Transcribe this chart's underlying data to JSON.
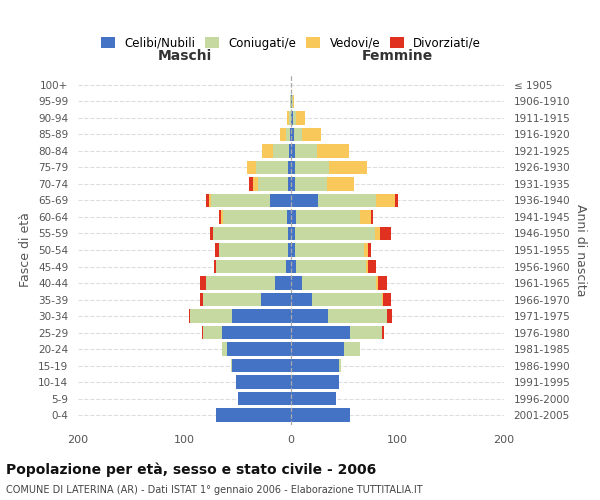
{
  "age_groups": [
    "0-4",
    "5-9",
    "10-14",
    "15-19",
    "20-24",
    "25-29",
    "30-34",
    "35-39",
    "40-44",
    "45-49",
    "50-54",
    "55-59",
    "60-64",
    "65-69",
    "70-74",
    "75-79",
    "80-84",
    "85-89",
    "90-94",
    "95-99",
    "100+"
  ],
  "birth_years": [
    "2001-2005",
    "1996-2000",
    "1991-1995",
    "1986-1990",
    "1981-1985",
    "1976-1980",
    "1971-1975",
    "1966-1970",
    "1961-1965",
    "1956-1960",
    "1951-1955",
    "1946-1950",
    "1941-1945",
    "1936-1940",
    "1931-1935",
    "1926-1930",
    "1921-1925",
    "1916-1920",
    "1911-1915",
    "1906-1910",
    "≤ 1905"
  ],
  "maschi": {
    "celibi": [
      70,
      50,
      52,
      55,
      60,
      65,
      55,
      28,
      15,
      5,
      3,
      3,
      4,
      20,
      3,
      3,
      2,
      1,
      0,
      0,
      0
    ],
    "coniugati": [
      0,
      0,
      0,
      1,
      5,
      18,
      40,
      55,
      65,
      65,
      65,
      70,
      60,
      55,
      28,
      30,
      15,
      4,
      2,
      1,
      0
    ],
    "vedovi": [
      0,
      0,
      0,
      0,
      0,
      0,
      0,
      0,
      0,
      0,
      0,
      0,
      2,
      2,
      5,
      8,
      10,
      5,
      2,
      0,
      0
    ],
    "divorziati": [
      0,
      0,
      0,
      0,
      0,
      1,
      1,
      2,
      5,
      2,
      3,
      3,
      2,
      3,
      3,
      0,
      0,
      0,
      0,
      0,
      0
    ]
  },
  "femmine": {
    "nubili": [
      55,
      42,
      45,
      45,
      50,
      55,
      35,
      20,
      10,
      5,
      4,
      4,
      5,
      25,
      4,
      4,
      4,
      3,
      2,
      1,
      0
    ],
    "coniugate": [
      0,
      0,
      0,
      2,
      15,
      30,
      55,
      65,
      70,
      65,
      65,
      75,
      60,
      55,
      30,
      32,
      20,
      7,
      3,
      1,
      0
    ],
    "vedove": [
      0,
      0,
      0,
      0,
      0,
      0,
      0,
      1,
      2,
      2,
      3,
      5,
      10,
      18,
      25,
      35,
      30,
      18,
      8,
      1,
      0
    ],
    "divorziate": [
      0,
      0,
      0,
      0,
      0,
      2,
      5,
      8,
      8,
      8,
      3,
      10,
      2,
      2,
      0,
      0,
      0,
      0,
      0,
      0,
      0
    ]
  },
  "colors": {
    "celibi": "#4472c4",
    "coniugati": "#c5d9a0",
    "vedovi": "#f9c85a",
    "divorziati": "#e03020"
  },
  "xlim": 200,
  "title": "Popolazione per età, sesso e stato civile - 2006",
  "subtitle": "COMUNE DI LATERINA (AR) - Dati ISTAT 1° gennaio 2006 - Elaborazione TUTTITALIA.IT",
  "ylabel_left": "Fasce di età",
  "ylabel_right": "Anni di nascita",
  "xlabel_left": "Maschi",
  "xlabel_right": "Femmine"
}
